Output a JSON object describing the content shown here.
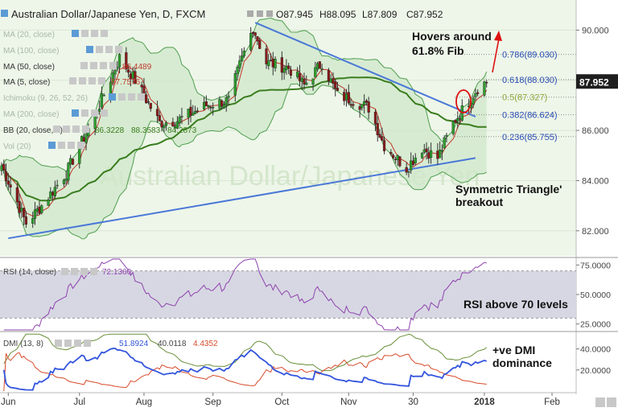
{
  "header": {
    "symbol": "Australian Dollar/Japanese Yen, D, FXCM",
    "ohlc": {
      "open": "O87.945",
      "high": "H88.095",
      "low": "L87.809",
      "close": "C87.952"
    }
  },
  "indicators": [
    {
      "label": "MA (20, close)",
      "faded": true,
      "values": []
    },
    {
      "label": "MA (100, close)",
      "faded": true,
      "values": []
    },
    {
      "label": "MA (50, close)",
      "faded": false,
      "values": [
        "86.4489"
      ]
    },
    {
      "label": "MA (5, close)",
      "faded": false,
      "values": [
        "87.7576"
      ]
    },
    {
      "label": "Ichimoku (9, 26, 52, 26)",
      "faded": true,
      "values": []
    },
    {
      "label": "MA (200, close)",
      "faded": true,
      "values": []
    },
    {
      "label": "BB (20, close, 2)",
      "faded": false,
      "values": [
        "86.3228",
        "88.3583",
        "84.2873"
      ]
    },
    {
      "label": "Vol (20)",
      "faded": true,
      "values": []
    }
  ],
  "price_axis": {
    "ticks": [
      "90.000",
      "88.000",
      "86.000",
      "84.000",
      "82.000"
    ],
    "current": "87.952"
  },
  "rsi_panel": {
    "label": "RSI (14, close)",
    "value": "72.1360",
    "ticks": [
      "75.0000",
      "50.0000",
      "25.0000"
    ],
    "annotation": "RSI above 70 levels"
  },
  "dmi_panel": {
    "label": "DMI (13, 8)",
    "values": [
      "51.8924",
      "40.0118",
      "4.4352"
    ],
    "ticks": [
      "40.0000",
      "20.0000"
    ],
    "annotation_line1": "+ve DMI",
    "annotation_line2": "dominance"
  },
  "annotations": {
    "hovers_line1": "Hovers around",
    "hovers_line2": "61.8% Fib",
    "triangle_line1": "Symmetric Triangle'",
    "triangle_line2": "breakout",
    "watermark": "Australian Dollar/Japanese Yen"
  },
  "colors": {
    "bull": "#2ca02c",
    "bear": "#8b1a1a",
    "ma50": "#3a7d1e",
    "ma5": "#c0392b",
    "bb_fill": "#cfe7c9",
    "bb_line": "#4f9f4f",
    "trendline": "#4a78d8",
    "rsi_line": "#8e44ad",
    "rsi_band": "#d7d7e3",
    "dmi_plus": "#3355dd",
    "dmi_minus": "#d84a2a",
    "adx": "#6a8f3a",
    "arrow": "#d11"
  },
  "chart_data": {
    "type": "candlestick",
    "title": "Australian Dollar/Japanese Yen, D, FXCM",
    "x_labels": [
      "Jun",
      "Jul",
      "Aug",
      "Sep",
      "Oct",
      "Nov",
      "30",
      "2018",
      "Feb"
    ],
    "ylim": [
      81.0,
      91.2
    ],
    "fib_levels": [
      {
        "label": "0.786(89.030)",
        "value": 89.03
      },
      {
        "label": "0.618(88.030)",
        "value": 88.03
      },
      {
        "label": "0.5(87.327)",
        "value": 87.327
      },
      {
        "label": "0.382(86.624)",
        "value": 86.624
      },
      {
        "label": "0.236(85.755)",
        "value": 85.755
      }
    ],
    "trendlines": [
      {
        "name": "upper",
        "points": [
          [
            "2017-06-01",
            81.1
          ],
          [
            "2017-12-28",
            86.5
          ]
        ]
      },
      {
        "name": "lower",
        "points": [
          [
            "2017-06-01",
            81.7
          ],
          [
            "2017-12-28",
            84.9
          ]
        ]
      }
    ],
    "price_anchors": [
      [
        "2017-05-29",
        84.6
      ],
      [
        "2017-06-09",
        82.3
      ],
      [
        "2017-06-16",
        83.0
      ],
      [
        "2017-06-27",
        84.3
      ],
      [
        "2017-07-10",
        86.6
      ],
      [
        "2017-07-21",
        88.9
      ],
      [
        "2017-07-28",
        88.0
      ],
      [
        "2017-08-08",
        86.3
      ],
      [
        "2017-08-16",
        86.4
      ],
      [
        "2017-08-29",
        87.0
      ],
      [
        "2017-09-08",
        87.2
      ],
      [
        "2017-09-13",
        88.6
      ],
      [
        "2017-09-19",
        90.1
      ],
      [
        "2017-09-25",
        88.7
      ],
      [
        "2017-10-05",
        88.5
      ],
      [
        "2017-10-12",
        87.8
      ],
      [
        "2017-10-20",
        88.7
      ],
      [
        "2017-10-27",
        87.4
      ],
      [
        "2017-11-03",
        87.2
      ],
      [
        "2017-11-10",
        86.9
      ],
      [
        "2017-11-17",
        85.4
      ],
      [
        "2017-11-27",
        84.5
      ],
      [
        "2017-12-04",
        85.3
      ],
      [
        "2017-12-11",
        84.9
      ],
      [
        "2017-12-18",
        86.3
      ],
      [
        "2017-12-22",
        86.8
      ],
      [
        "2017-12-29",
        87.7
      ],
      [
        "2018-01-02",
        87.95
      ]
    ],
    "rsi": {
      "ylim": [
        20,
        80
      ],
      "band": [
        30,
        70
      ],
      "last": 72.136
    },
    "dmi": {
      "ylim": [
        0,
        55
      ],
      "last": {
        "plus_di": 51.8924,
        "minus_di": 4.4352,
        "adx": 40.0118
      }
    }
  }
}
